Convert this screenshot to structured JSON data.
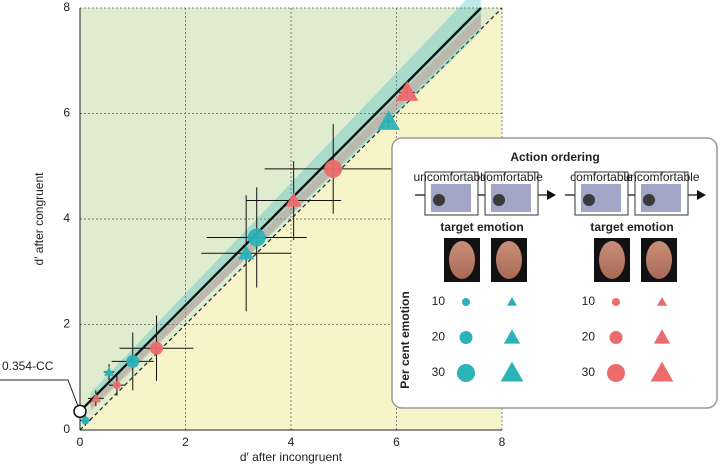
{
  "chart_data": {
    "type": "scatter",
    "xlabel": "d′ after incongruent",
    "ylabel": "d′ after congruent",
    "xlim": [
      0,
      8
    ],
    "ylim": [
      0,
      8
    ],
    "xticks": [
      0,
      2,
      4,
      6,
      8
    ],
    "yticks": [
      0,
      2,
      4,
      6,
      8
    ],
    "grid": true,
    "fit": {
      "intercept": 0.354,
      "slope": 1.006,
      "label": "0.354-CC"
    },
    "series": [
      {
        "marker": "circle",
        "color": "#2bb3b8",
        "x": [
          0.1,
          1.0,
          3.35
        ],
        "y": [
          0.18,
          1.3,
          3.65
        ],
        "xerr": [
          0.1,
          0.4,
          0.95
        ],
        "yerr": [
          0.1,
          0.55,
          0.95
        ],
        "sizes": [
          10,
          20,
          30
        ]
      },
      {
        "marker": "triangle",
        "color": "#2bb3b8",
        "x": [
          0.55,
          3.15,
          5.85
        ],
        "y": [
          1.1,
          3.35,
          5.85
        ],
        "xerr": [
          0.1,
          0.85,
          0.1
        ],
        "yerr": [
          0.15,
          1.1,
          0.15
        ],
        "sizes": [
          10,
          20,
          30
        ]
      },
      {
        "marker": "circle",
        "color": "#ec6b6b",
        "x": [
          0.7,
          1.45,
          4.8
        ],
        "y": [
          0.85,
          1.55,
          4.95
        ],
        "xerr": [
          0.15,
          0.7,
          1.3
        ],
        "yerr": [
          0.2,
          0.62,
          0.85
        ],
        "sizes": [
          10,
          20,
          30
        ]
      },
      {
        "marker": "triangle",
        "color": "#ec6b6b",
        "x": [
          0.3,
          4.05,
          6.2
        ],
        "y": [
          0.6,
          4.35,
          6.4
        ],
        "xerr": [
          0.15,
          0.9,
          0.15
        ],
        "yerr": [
          0.15,
          0.75,
          0.12
        ],
        "sizes": [
          10,
          20,
          30
        ]
      }
    ],
    "legend": {
      "title": "Action ordering",
      "levels_title": "Per cent emotion",
      "groups": [
        {
          "panels": [
            "uncomfortable",
            "comfortable"
          ],
          "label": "target emotion",
          "color": "#2bb3b8",
          "levels": [
            10,
            20,
            30
          ]
        },
        {
          "panels": [
            "comfortable",
            "uncomfortable"
          ],
          "label": "target emotion",
          "color": "#ec6b6b",
          "levels": [
            10,
            20,
            30
          ]
        }
      ]
    }
  }
}
